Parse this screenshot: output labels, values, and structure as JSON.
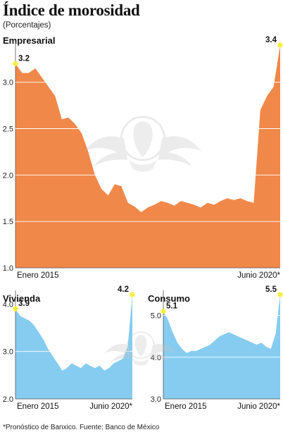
{
  "header": {
    "title": "Índice de morosidad",
    "subtitle": "(Porcentajes)"
  },
  "footer": {
    "source": "*Pronóstico de Banxico. Fuente: Banco de México"
  },
  "colors": {
    "empresarial_fill": "#F0884A",
    "vivienda_fill": "#86CCF0",
    "consumo_fill": "#86CCF0",
    "endpoint_marker": "#F8EE3C",
    "gridline": "#ffffff"
  },
  "watermark_icon": "eagle-seal-icon",
  "chart_data": [
    {
      "type": "area",
      "panel": "Empresarial",
      "title": "Empresarial",
      "x_start_label": "Enero 2015",
      "x_end_label": "Junio 2020*",
      "ylim": [
        1.0,
        3.4
      ],
      "yticks": [
        1.0,
        1.5,
        2.0,
        2.5,
        3.0
      ],
      "ytick_labels": [
        "1.0",
        "1.5",
        "2.0",
        "2.5",
        "3.0"
      ],
      "first_label": "3.2",
      "last_label": "3.4",
      "values": [
        3.2,
        3.1,
        3.1,
        3.15,
        3.05,
        2.95,
        2.85,
        2.6,
        2.62,
        2.55,
        2.45,
        2.25,
        2.0,
        1.85,
        1.78,
        1.9,
        1.88,
        1.7,
        1.66,
        1.6,
        1.65,
        1.68,
        1.72,
        1.7,
        1.67,
        1.72,
        1.7,
        1.68,
        1.65,
        1.7,
        1.68,
        1.72,
        1.75,
        1.73,
        1.75,
        1.72,
        1.7,
        2.7,
        2.85,
        2.95,
        3.4
      ]
    },
    {
      "type": "area",
      "panel": "Vivienda",
      "title": "Vivienda",
      "x_start_label": "Enero 2015",
      "x_end_label": "Junio 2020*",
      "ylim": [
        2.0,
        4.2
      ],
      "yticks": [
        2.0,
        3.0,
        4.0
      ],
      "ytick_labels": [
        "2.0",
        "3.0",
        "4.0"
      ],
      "first_label": "3.9",
      "last_label": "4.2",
      "values": [
        3.9,
        3.75,
        3.7,
        3.65,
        3.55,
        3.4,
        3.25,
        3.05,
        2.9,
        2.75,
        2.6,
        2.65,
        2.75,
        2.7,
        2.65,
        2.75,
        2.7,
        2.65,
        2.7,
        2.6,
        2.65,
        2.75,
        2.8,
        2.85,
        3.1,
        4.2
      ]
    },
    {
      "type": "area",
      "panel": "Consumo",
      "title": "Consumo",
      "x_start_label": "Enero 2015",
      "x_end_label": "Junio 2020*",
      "ylim": [
        3.0,
        5.5
      ],
      "yticks": [
        3.0,
        4.0,
        5.0
      ],
      "ytick_labels": [
        "3.0",
        "4.0",
        "5.0"
      ],
      "first_label": "5.1",
      "last_label": "5.5",
      "values": [
        5.1,
        4.9,
        4.6,
        4.35,
        4.2,
        4.1,
        4.15,
        4.15,
        4.2,
        4.25,
        4.3,
        4.4,
        4.5,
        4.55,
        4.6,
        4.55,
        4.5,
        4.45,
        4.4,
        4.35,
        4.3,
        4.35,
        4.25,
        4.2,
        4.55,
        5.5
      ]
    }
  ]
}
